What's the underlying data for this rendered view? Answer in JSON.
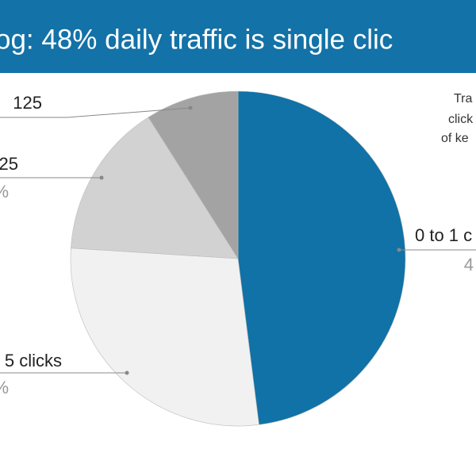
{
  "chart_data": {
    "type": "pie",
    "title": "og: 48% daily traffic is single clic",
    "categories": [
      "0 to 1 c",
      "5 clicks",
      "25",
      "125"
    ],
    "sublabels": [
      "4",
      "%",
      "%",
      null
    ],
    "values": [
      48,
      28,
      15,
      9
    ],
    "colors": [
      "#1072a6",
      "#f1f1f1",
      "#d2d2d2",
      "#a3a3a3"
    ],
    "annotation": [
      "Tra",
      "click",
      "of ke"
    ]
  }
}
